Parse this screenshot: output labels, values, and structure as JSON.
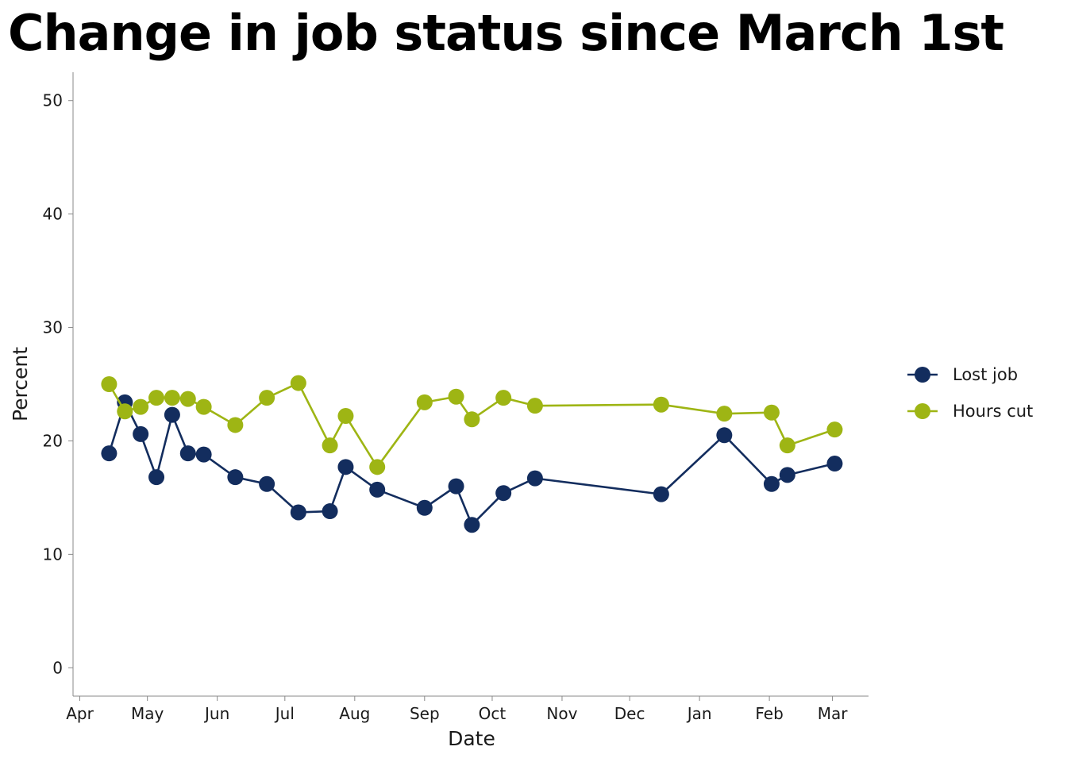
{
  "title": "Change in job status since March 1st",
  "chart_data": {
    "type": "line",
    "title": "Change in job status since March 1st",
    "xlabel": "Date",
    "ylabel": "Percent",
    "x_tick_labels": [
      "Apr",
      "May",
      "Jun",
      "Jul",
      "Aug",
      "Sep",
      "Oct",
      "Nov",
      "Dec",
      "Jan",
      "Feb",
      "Mar"
    ],
    "x_ticks": [
      "2020-04-01",
      "2020-05-01",
      "2020-06-01",
      "2020-07-01",
      "2020-08-01",
      "2020-09-01",
      "2020-10-01",
      "2020-11-01",
      "2020-12-01",
      "2021-01-01",
      "2021-02-01",
      "2021-03-01"
    ],
    "xlim": [
      "2020-03-29",
      "2021-03-17"
    ],
    "ylim": [
      -2.5,
      52.5
    ],
    "y_ticks": [
      0,
      10,
      20,
      30,
      40,
      50
    ],
    "grid": false,
    "legend": "right",
    "x": [
      "2020-04-14",
      "2020-04-21",
      "2020-04-28",
      "2020-05-05",
      "2020-05-12",
      "2020-05-19",
      "2020-05-26",
      "2020-06-09",
      "2020-06-23",
      "2020-07-07",
      "2020-07-21",
      "2020-07-28",
      "2020-08-11",
      "2020-09-01",
      "2020-09-15",
      "2020-09-22",
      "2020-10-06",
      "2020-10-20",
      "2020-12-15",
      "2021-01-12",
      "2021-02-02",
      "2021-02-09",
      "2021-03-02"
    ],
    "series": [
      {
        "name": "Lost job",
        "color": "#132d5e",
        "values": [
          18.9,
          23.4,
          20.6,
          16.8,
          22.3,
          18.9,
          18.8,
          16.8,
          16.2,
          13.7,
          13.8,
          17.7,
          15.7,
          14.1,
          16.0,
          12.6,
          15.4,
          16.7,
          15.3,
          20.5,
          16.2,
          17.0,
          18.0
        ]
      },
      {
        "name": "Hours cut",
        "color": "#9eb514",
        "values": [
          25.0,
          22.6,
          23.0,
          23.8,
          23.8,
          23.7,
          23.0,
          21.4,
          23.8,
          25.1,
          19.6,
          22.2,
          17.7,
          23.4,
          23.9,
          21.9,
          23.8,
          23.1,
          23.2,
          22.4,
          22.5,
          19.6,
          21.0
        ]
      }
    ]
  }
}
